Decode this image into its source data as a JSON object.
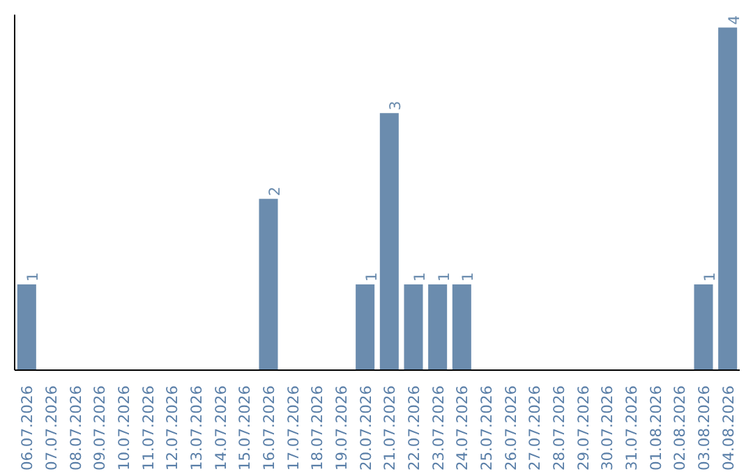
{
  "chart_data": {
    "type": "bar",
    "categories": [
      "06.07.2026",
      "07.07.2026",
      "08.07.2026",
      "09.07.2026",
      "10.07.2026",
      "11.07.2026",
      "12.07.2026",
      "13.07.2026",
      "14.07.2026",
      "15.07.2026",
      "16.07.2026",
      "17.07.2026",
      "18.07.2026",
      "19.07.2026",
      "20.07.2026",
      "21.07.2026",
      "22.07.2026",
      "23.07.2026",
      "24.07.2026",
      "25.07.2026",
      "26.07.2026",
      "27.07.2026",
      "28.07.2026",
      "29.07.2026",
      "30.07.2026",
      "31.07.2026",
      "01.08.2026",
      "02.08.2026",
      "03.08.2026",
      "04.08.2026"
    ],
    "values": [
      1,
      0,
      0,
      0,
      0,
      0,
      0,
      0,
      0,
      0,
      2,
      0,
      0,
      0,
      1,
      3,
      1,
      1,
      1,
      0,
      0,
      0,
      0,
      0,
      0,
      0,
      0,
      0,
      1,
      4
    ],
    "value_labels": [
      "1",
      null,
      null,
      null,
      null,
      null,
      null,
      null,
      null,
      null,
      "2",
      null,
      null,
      null,
      "1",
      "3",
      "1",
      "1",
      "1",
      null,
      null,
      null,
      null,
      null,
      null,
      null,
      null,
      null,
      "1",
      "4"
    ],
    "color": "#6b8cae",
    "ylim": [
      0,
      4.15
    ],
    "tick_labels": "x"
  }
}
